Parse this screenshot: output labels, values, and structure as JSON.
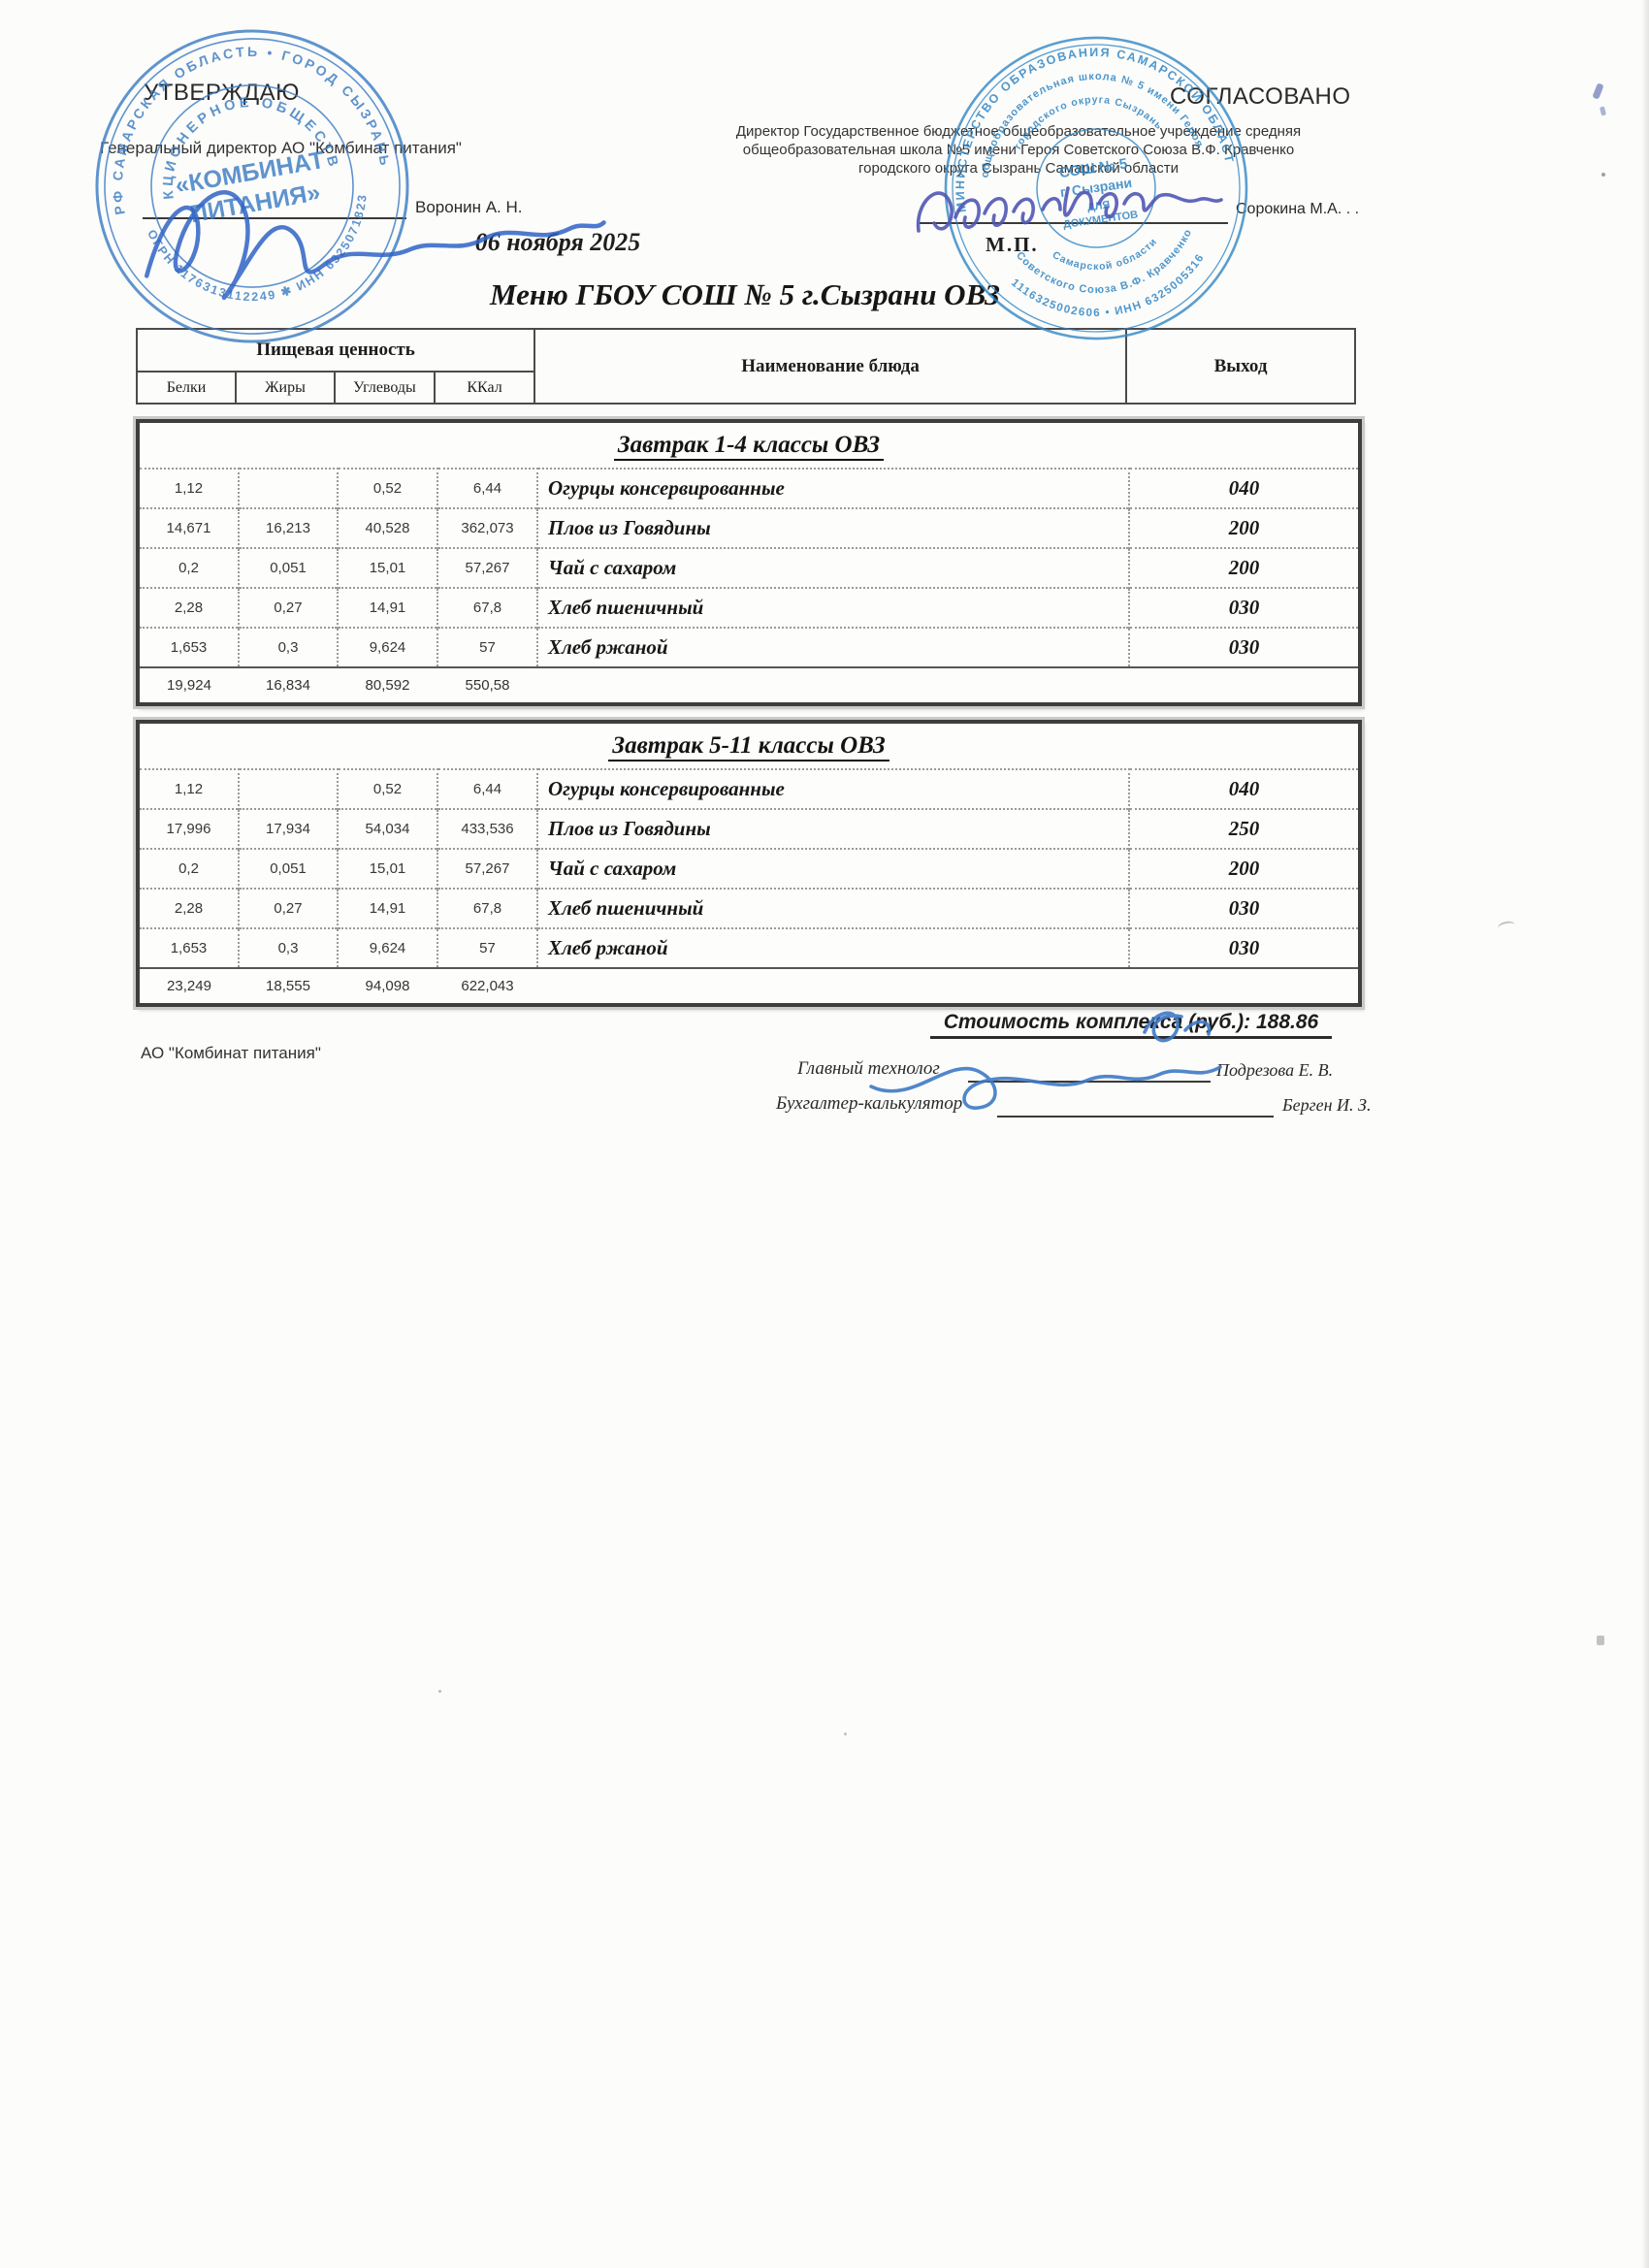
{
  "document": {
    "title": "Меню ГБОУ СОШ № 5 г.Сызрани ОВЗ"
  },
  "approval": {
    "left": {
      "heading": "УТВЕРЖДАЮ",
      "role_line": "Генеральный директор АО \"Комбинат питания\"",
      "signer": "Воронин А. Н.",
      "date": "06 ноября 2025"
    },
    "right": {
      "heading": "СОГЛАСОВАНО",
      "org_lines": [
        "Директор Государственное бюджетное общеобразовательное учреждение средняя",
        "общеобразовательная школа №5 имени Героя Советского Союза В.Ф. Кравченко",
        "городского округа Сызрань Самарской области"
      ],
      "signer": "Сорокина М.А. . .",
      "seal_mark": "М.П."
    }
  },
  "stamps": {
    "left": {
      "ring_top": "РФ САМАРСКАЯ ОБЛАСТЬ • ГОРОД СЫЗРАНЬ",
      "ring_bottom": "ОГРН 1176313112249 ✱ ИНН 6325071823",
      "ring_middle": "АКЦИОНЕРНОЕ ОБЩЕСТВО",
      "center_line1": "«КОМБИНАТ",
      "center_line2": "ПИТАНИЯ»"
    },
    "right": {
      "ring1_top": "МИНИСТЕРСТВО ОБРАЗОВАНИЯ САМАРСКОЙ ОБЛАСТИ",
      "ring1_bottom": "1116325002606 • ИНН 6325005316",
      "ring2_top": "общеобразовательная школа № 5 имени Героя",
      "ring2_bottom": "Советского Союза В.Ф. Кравченко",
      "ring3_top": "городского округа Сызрань",
      "ring3_bottom": "Самарской области",
      "center_lines": [
        "СОШ № 5",
        "г. Сызрани",
        "ДЛЯ",
        "ДОКУМЕНТОВ"
      ]
    }
  },
  "menu_header": {
    "nutrition_group": "Пищевая ценность",
    "nutrition_columns": [
      "Белки",
      "Жиры",
      "Углеводы",
      "ККал"
    ],
    "dish_column": "Наименование блюда",
    "output_column": "Выход"
  },
  "tables": [
    {
      "title": "Завтрак 1-4 классы ОВЗ",
      "rows": [
        {
          "protein": "1,12",
          "fat": "",
          "carbs": "0,52",
          "kcal": "6,44",
          "name": "Огурцы консервированные",
          "output": "040"
        },
        {
          "protein": "14,671",
          "fat": "16,213",
          "carbs": "40,528",
          "kcal": "362,073",
          "name": "Плов из Говядины",
          "output": "200"
        },
        {
          "protein": "0,2",
          "fat": "0,051",
          "carbs": "15,01",
          "kcal": "57,267",
          "name": "Чай с сахаром",
          "output": "200"
        },
        {
          "protein": "2,28",
          "fat": "0,27",
          "carbs": "14,91",
          "kcal": "67,8",
          "name": "Хлеб пшеничный",
          "output": "030"
        },
        {
          "protein": "1,653",
          "fat": "0,3",
          "carbs": "9,624",
          "kcal": "57",
          "name": "Хлеб ржаной",
          "output": "030"
        }
      ],
      "totals": [
        "19,924",
        "16,834",
        "80,592",
        "550,58"
      ]
    },
    {
      "title": "Завтрак 5-11 классы ОВЗ",
      "rows": [
        {
          "protein": "1,12",
          "fat": "",
          "carbs": "0,52",
          "kcal": "6,44",
          "name": "Огурцы консервированные",
          "output": "040"
        },
        {
          "protein": "17,996",
          "fat": "17,934",
          "carbs": "54,034",
          "kcal": "433,536",
          "name": "Плов из Говядины",
          "output": "250"
        },
        {
          "protein": "0,2",
          "fat": "0,051",
          "carbs": "15,01",
          "kcal": "57,267",
          "name": "Чай с сахаром",
          "output": "200"
        },
        {
          "protein": "2,28",
          "fat": "0,27",
          "carbs": "14,91",
          "kcal": "67,8",
          "name": "Хлеб пшеничный",
          "output": "030"
        },
        {
          "protein": "1,653",
          "fat": "0,3",
          "carbs": "9,624",
          "kcal": "57",
          "name": "Хлеб ржаной",
          "output": "030"
        }
      ],
      "totals": [
        "23,249",
        "18,555",
        "94,098",
        "622,043"
      ]
    }
  ],
  "footer": {
    "cost_line": "Стоимость комплекса (руб.): 188.86",
    "company": "АО \"Комбинат питания\"",
    "technologist_label": "Главный технолог",
    "technologist_name": "Подрезова Е. В.",
    "accountant_label": "Бухгалтер-калькулятор",
    "accountant_name": "Берген И. З."
  },
  "colors": {
    "stamp_blue_left": "#3c7cc4",
    "stamp_blue_right": "#2f86c6",
    "signature_blue": "#3e79c4",
    "signature_violet": "#5056b4",
    "ink": "#2a2a2a",
    "paper": "#fcfcfa"
  }
}
